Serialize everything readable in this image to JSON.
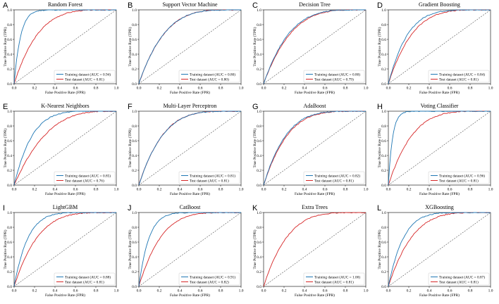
{
  "colors": {
    "train": "#1f77b4",
    "test": "#d62728"
  },
  "chart_data": [
    {
      "letter": "A",
      "type": "line",
      "title": "Random Forest",
      "xlabel": "False Positive Rate (FPR)",
      "ylabel": "True Positive Rate (TPR)",
      "xlim": [
        0,
        1
      ],
      "ylim": [
        0,
        1
      ],
      "xticks": [
        "0.0",
        "0.2",
        "0.4",
        "0.6",
        "0.8",
        "1.0"
      ],
      "yticks": [
        "0.0",
        "0.2",
        "0.4",
        "0.6",
        "0.8",
        "1.0"
      ],
      "train_auc": 0.94,
      "test_auc": 0.81,
      "legend": [
        "Training dataset (AUC = 0.94)",
        "Test dataset (AUC = 0.81)"
      ],
      "legend_position": "lower-right"
    },
    {
      "letter": "B",
      "type": "line",
      "title": "Support Vector Machine",
      "xlabel": "False Positive Rate (FPR)",
      "ylabel": "True Positive Rate (TPR)",
      "xlim": [
        0,
        1
      ],
      "ylim": [
        0,
        1
      ],
      "xticks": [
        "0.0",
        "0.2",
        "0.4",
        "0.6",
        "0.8",
        "1.0"
      ],
      "yticks": [
        "0.0",
        "0.2",
        "0.4",
        "0.6",
        "0.8",
        "1.0"
      ],
      "train_auc": 0.8,
      "test_auc": 0.8,
      "legend": [
        "Training dataset (AUC = 0.80)",
        "Test dataset (AUC = 0.80)"
      ],
      "legend_position": "lower-right"
    },
    {
      "letter": "C",
      "type": "line",
      "title": "Decision Tree",
      "xlabel": "False Positive Rate (FPR)",
      "ylabel": "True Positive Rate (TPR)",
      "xlim": [
        0,
        1
      ],
      "ylim": [
        0,
        1
      ],
      "xticks": [
        "0.0",
        "0.2",
        "0.4",
        "0.6",
        "0.8",
        "1.0"
      ],
      "yticks": [
        "0.0",
        "0.2",
        "0.4",
        "0.6",
        "0.8",
        "1.0"
      ],
      "train_auc": 0.8,
      "test_auc": 0.79,
      "legend": [
        "Training dataset (AUC = 0.80)",
        "Test dataset (AUC = 0.79)"
      ],
      "legend_position": "lower-right"
    },
    {
      "letter": "D",
      "type": "line",
      "title": "Gradient Boosting",
      "xlabel": "False Positive Rate (FPR)",
      "ylabel": "True Positive Rate (TPR)",
      "xlim": [
        0,
        1
      ],
      "ylim": [
        0,
        1
      ],
      "xticks": [
        "0.0",
        "0.2",
        "0.4",
        "0.6",
        "0.8",
        "1.0"
      ],
      "yticks": [
        "0.0",
        "0.2",
        "0.4",
        "0.6",
        "0.8",
        "1.0"
      ],
      "train_auc": 0.84,
      "test_auc": 0.81,
      "legend": [
        "Training dataset (AUC = 0.84)",
        "Test dataset (AUC = 0.81)"
      ],
      "legend_position": "lower-right"
    },
    {
      "letter": "E",
      "type": "line",
      "title": "K-Nearest Neighbors",
      "xlabel": "False Positive Rate (FPR)",
      "ylabel": "True Positive Rate (TPR)",
      "xlim": [
        0,
        1
      ],
      "ylim": [
        0,
        1
      ],
      "xticks": [
        "0.0",
        "0.2",
        "0.4",
        "0.6",
        "0.8",
        "1.0"
      ],
      "yticks": [
        "0.0",
        "0.2",
        "0.4",
        "0.6",
        "0.8",
        "1.0"
      ],
      "train_auc": 0.85,
      "test_auc": 0.76,
      "legend": [
        "Training dataset (AUC = 0.85)",
        "Test dataset (AUC = 0.76)"
      ],
      "legend_position": "lower-right"
    },
    {
      "letter": "F",
      "type": "line",
      "title": "Multi-Layer Perceptron",
      "xlabel": "False Positive Rate (FPR)",
      "ylabel": "True Positive Rate (TPR)",
      "xlim": [
        0,
        1
      ],
      "ylim": [
        0,
        1
      ],
      "xticks": [
        "0.0",
        "0.2",
        "0.4",
        "0.6",
        "0.8",
        "1.0"
      ],
      "yticks": [
        "0.0",
        "0.2",
        "0.4",
        "0.6",
        "0.8",
        "1.0"
      ],
      "train_auc": 0.81,
      "test_auc": 0.81,
      "legend": [
        "Training dataset (AUC = 0.81)",
        "Test dataset (AUC = 0.81)"
      ],
      "legend_position": "lower-right"
    },
    {
      "letter": "G",
      "type": "line",
      "title": "AdaBoost",
      "xlabel": "False Positive Rate (FPR)",
      "ylabel": "True Positive Rate (TPR)",
      "xlim": [
        0,
        1
      ],
      "ylim": [
        0,
        1
      ],
      "xticks": [
        "0.0",
        "0.2",
        "0.4",
        "0.6",
        "0.8",
        "1.0"
      ],
      "yticks": [
        "0.0",
        "0.2",
        "0.4",
        "0.6",
        "0.8",
        "1.0"
      ],
      "train_auc": 0.82,
      "test_auc": 0.81,
      "legend": [
        "Training dataset (AUC = 0.82)",
        "Test dataset (AUC = 0.81)"
      ],
      "legend_position": "lower-right"
    },
    {
      "letter": "H",
      "type": "line",
      "title": "Voting Classifier",
      "xlabel": "False Positive Rate (FPR)",
      "ylabel": "True Positive Rate (TPR)",
      "xlim": [
        0,
        1
      ],
      "ylim": [
        0,
        1
      ],
      "xticks": [
        "0.0",
        "0.2",
        "0.4",
        "0.6",
        "0.8",
        "1.0"
      ],
      "yticks": [
        "0.0",
        "0.2",
        "0.4",
        "0.6",
        "0.8",
        "1.0"
      ],
      "train_auc": 0.96,
      "test_auc": 0.81,
      "legend": [
        "Training dataset (AUC = 0.96)",
        "Test dataset (AUC = 0.81)"
      ],
      "legend_position": "lower-right"
    },
    {
      "letter": "I",
      "type": "line",
      "title": "LightGBM",
      "xlabel": "False Positive Rate (FPR)",
      "ylabel": "True Positive Rate (TPR)",
      "xlim": [
        0,
        1
      ],
      "ylim": [
        0,
        1
      ],
      "xticks": [
        "0.0",
        "0.2",
        "0.4",
        "0.6",
        "0.8",
        "1.0"
      ],
      "yticks": [
        "0.0",
        "0.2",
        "0.4",
        "0.6",
        "0.8",
        "1.0"
      ],
      "train_auc": 0.88,
      "test_auc": 0.81,
      "legend": [
        "Training dataset (AUC = 0.88)",
        "Test dataset (AUC = 0.81)"
      ],
      "legend_position": "lower-right"
    },
    {
      "letter": "J",
      "type": "line",
      "title": "CatBoost",
      "xlabel": "False Positive Rate (FPR)",
      "ylabel": "True Positive Rate (TPR)",
      "xlim": [
        0,
        1
      ],
      "ylim": [
        0,
        1
      ],
      "xticks": [
        "0.0",
        "0.2",
        "0.4",
        "0.6",
        "0.8",
        "1.0"
      ],
      "yticks": [
        "0.0",
        "0.2",
        "0.4",
        "0.6",
        "0.8",
        "1.0"
      ],
      "train_auc": 0.91,
      "test_auc": 0.82,
      "legend": [
        "Training dataset (AUC = 0.91)",
        "Test dataset (AUC = 0.82)"
      ],
      "legend_position": "lower-right"
    },
    {
      "letter": "K",
      "type": "line",
      "title": "Extra Trees",
      "xlabel": "False Positive Rate (FPR)",
      "ylabel": "True Positive Rate (TPR)",
      "xlim": [
        0,
        1
      ],
      "ylim": [
        0,
        1
      ],
      "xticks": [
        "0.0",
        "0.2",
        "0.4",
        "0.6",
        "0.8",
        "1.0"
      ],
      "yticks": [
        "0.0",
        "0.2",
        "0.4",
        "0.6",
        "0.8",
        "1.0"
      ],
      "train_auc": 1.0,
      "test_auc": 0.81,
      "legend": [
        "Training dataset (AUC = 1.00)",
        "Test dataset (AUC = 0.81)"
      ],
      "legend_position": "lower-right"
    },
    {
      "letter": "L",
      "type": "line",
      "title": "XGBoosting",
      "xlabel": "False Positive Rate (FPR)",
      "ylabel": "True Positive Rate (TPR)",
      "xlim": [
        0,
        1
      ],
      "ylim": [
        0,
        1
      ],
      "xticks": [
        "0.0",
        "0.2",
        "0.4",
        "0.6",
        "0.8",
        "1.0"
      ],
      "yticks": [
        "0.0",
        "0.2",
        "0.4",
        "0.6",
        "0.8",
        "1.0"
      ],
      "train_auc": 0.87,
      "test_auc": 0.81,
      "legend": [
        "Training dataset (AUC = 0.87)",
        "Test dataset (AUC = 0.81)"
      ],
      "legend_position": "lower-right"
    }
  ]
}
